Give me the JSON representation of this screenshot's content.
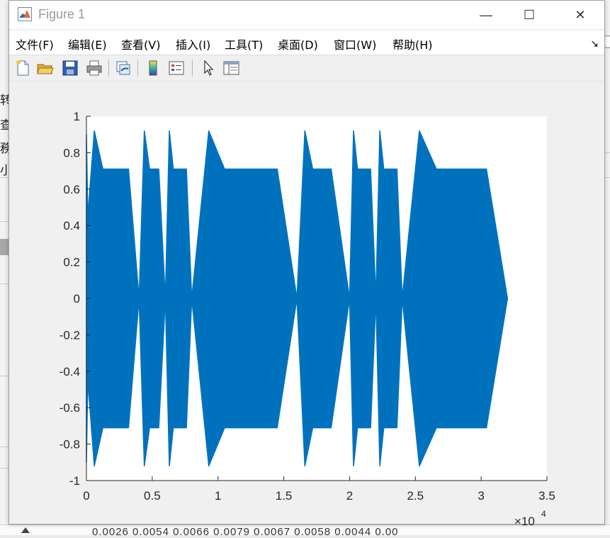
{
  "window": {
    "title": "Figure 1",
    "minimize_glyph": "—",
    "maximize_glyph": "☐",
    "close_glyph": "✕",
    "dock_glyph": "↘"
  },
  "menu": {
    "items": [
      "文件(F)",
      "编辑(E)",
      "查看(V)",
      "插入(I)",
      "工具(T)",
      "桌面(D)",
      "窗口(W)",
      "帮助(H)"
    ]
  },
  "toolbar": {
    "buttons": [
      "new-figure-icon",
      "open-file-icon",
      "save-icon",
      "print-icon",
      "link-plot-icon",
      "insert-colorbar-icon",
      "insert-legend-icon",
      "edit-plot-arrow-icon",
      "property-inspector-icon"
    ]
  },
  "background": {
    "side_chars": [
      "转",
      "查",
      "務",
      "小"
    ],
    "bottom_text": "0.0026    0.0054    0.0066    0.0079    0.0067    0.0058    0.0044    0.00"
  },
  "chart_data": {
    "type": "area",
    "title": "",
    "xlabel": "",
    "ylabel": "",
    "xlim": [
      0,
      35000
    ],
    "ylim": [
      -1,
      1
    ],
    "x_ticks": [
      "0",
      "0.5",
      "1",
      "1.5",
      "2",
      "2.5",
      "3",
      "3.5"
    ],
    "x_tick_values": [
      0,
      5000,
      10000,
      15000,
      20000,
      25000,
      30000,
      35000
    ],
    "x_exponent_label": "×10",
    "x_exponent_power": "4",
    "y_ticks": [
      "1",
      "0.8",
      "0.6",
      "0.4",
      "0.2",
      "0",
      "-0.2",
      "-0.4",
      "-0.6",
      "-0.8",
      "-1"
    ],
    "y_tick_values": [
      1,
      0.8,
      0.6,
      0.4,
      0.2,
      0,
      -0.2,
      -0.4,
      -0.6,
      -0.8,
      -1
    ],
    "series": [
      {
        "color": "#0072BD",
        "envelope": [
          [
            0,
            0.9
          ],
          [
            100,
            0.45
          ],
          [
            600,
            0.92
          ],
          [
            1250,
            0.71
          ],
          [
            3200,
            0.71
          ],
          [
            4000,
            0.0
          ],
          [
            4000,
            0.0
          ],
          [
            4400,
            0.92
          ],
          [
            4800,
            0.71
          ],
          [
            5500,
            0.71
          ],
          [
            6000,
            0.0
          ],
          [
            6000,
            0.0
          ],
          [
            6300,
            0.92
          ],
          [
            6600,
            0.71
          ],
          [
            7600,
            0.71
          ],
          [
            8000,
            0.0
          ],
          [
            8000,
            0.0
          ],
          [
            9300,
            0.92
          ],
          [
            10500,
            0.71
          ],
          [
            14500,
            0.71
          ],
          [
            16000,
            0.0
          ],
          [
            16000,
            0.0
          ],
          [
            16600,
            0.92
          ],
          [
            17200,
            0.71
          ],
          [
            18600,
            0.71
          ],
          [
            20000,
            0.0
          ],
          [
            20000,
            0.0
          ],
          [
            20300,
            0.92
          ],
          [
            20600,
            0.71
          ],
          [
            21600,
            0.71
          ],
          [
            22000,
            0.0
          ],
          [
            22000,
            0.0
          ],
          [
            22300,
            0.92
          ],
          [
            22600,
            0.71
          ],
          [
            23600,
            0.71
          ],
          [
            24000,
            0.0
          ],
          [
            24000,
            0.0
          ],
          [
            25300,
            0.92
          ],
          [
            26600,
            0.71
          ],
          [
            30400,
            0.71
          ],
          [
            32000,
            0.0
          ]
        ]
      }
    ],
    "grid": false,
    "background": "#ffffff"
  }
}
